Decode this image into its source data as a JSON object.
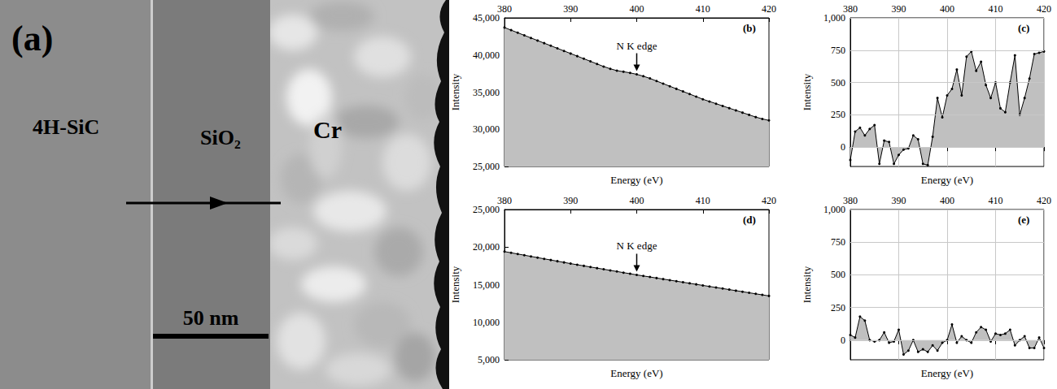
{
  "image": {
    "label": "(a)",
    "layers": [
      "4H-SiC",
      "SiO₂",
      "Cr"
    ],
    "scale_bar": "50 nm"
  },
  "chart_data": [
    {
      "type": "area",
      "label": "(b)",
      "xlabel": "Energy (eV)",
      "ylabel": "Intensity",
      "color": "#c0c0c0",
      "marker": "circle",
      "grid": false,
      "x": [
        380,
        381,
        382,
        383,
        384,
        385,
        386,
        387,
        388,
        389,
        390,
        391,
        392,
        393,
        394,
        395,
        396,
        397,
        398,
        399,
        400,
        401,
        402,
        403,
        404,
        405,
        406,
        407,
        408,
        409,
        410,
        411,
        412,
        413,
        414,
        415,
        416,
        417,
        418,
        419,
        420
      ],
      "values": [
        43700,
        43350,
        43000,
        42650,
        42300,
        41950,
        41600,
        41250,
        40900,
        40550,
        40200,
        39850,
        39500,
        39150,
        38800,
        38450,
        38150,
        37900,
        37750,
        37600,
        37400,
        37150,
        36850,
        36500,
        36150,
        35800,
        35450,
        35100,
        34750,
        34400,
        34050,
        33750,
        33450,
        33150,
        32850,
        32550,
        32250,
        31950,
        31650,
        31400,
        31200
      ],
      "xlim": [
        380,
        420
      ],
      "xticks": [
        380,
        390,
        400,
        410,
        420
      ],
      "ylim": [
        25000,
        45000
      ],
      "yticks": [
        {
          "value": 25000,
          "label": "25,000"
        },
        {
          "value": 30000,
          "label": "30,000"
        },
        {
          "value": 35000,
          "label": "35,000"
        },
        {
          "value": 40000,
          "label": "40,000"
        },
        {
          "value": 45000,
          "label": "45,000"
        }
      ],
      "annotation": {
        "text": "N K edge",
        "x": 400
      }
    },
    {
      "type": "area",
      "label": "(c)",
      "xlabel": "Energy (eV)",
      "ylabel": "Intensity",
      "color": "#c0c0c0",
      "marker": "circle",
      "grid": true,
      "x": [
        380,
        381,
        382,
        383,
        384,
        385,
        386,
        387,
        388,
        389,
        390,
        391,
        392,
        393,
        394,
        395,
        396,
        397,
        398,
        399,
        400,
        401,
        402,
        403,
        404,
        405,
        406,
        407,
        408,
        409,
        410,
        411,
        412,
        413,
        414,
        415,
        416,
        417,
        418,
        419,
        420
      ],
      "values": [
        -100,
        120,
        150,
        90,
        140,
        170,
        -130,
        50,
        40,
        -130,
        -60,
        -20,
        -10,
        90,
        60,
        -130,
        -140,
        80,
        380,
        230,
        400,
        450,
        600,
        400,
        700,
        740,
        590,
        660,
        480,
        380,
        500,
        300,
        270,
        500,
        710,
        250,
        380,
        530,
        720,
        730,
        740
      ],
      "xlim": [
        380,
        420
      ],
      "xticks": [
        380,
        390,
        400,
        410,
        420
      ],
      "ylim": [
        -150,
        1000
      ],
      "yticks": [
        0,
        250,
        500,
        750,
        {
          "value": 1000,
          "label": "1,000"
        }
      ]
    },
    {
      "type": "area",
      "label": "(d)",
      "xlabel": "Energy (eV)",
      "ylabel": "Intensity",
      "color": "#c0c0c0",
      "marker": "circle",
      "grid": false,
      "x": [
        380,
        381,
        382,
        383,
        384,
        385,
        386,
        387,
        388,
        389,
        390,
        391,
        392,
        393,
        394,
        395,
        396,
        397,
        398,
        399,
        400,
        401,
        402,
        403,
        404,
        405,
        406,
        407,
        408,
        409,
        410,
        411,
        412,
        413,
        414,
        415,
        416,
        417,
        418,
        419,
        420
      ],
      "values": [
        19400,
        19240,
        19080,
        18920,
        18760,
        18600,
        18440,
        18280,
        18120,
        17960,
        17800,
        17650,
        17500,
        17350,
        17200,
        17050,
        16900,
        16750,
        16600,
        16450,
        16300,
        16160,
        16020,
        15880,
        15740,
        15600,
        15460,
        15320,
        15180,
        15040,
        14900,
        14760,
        14620,
        14480,
        14340,
        14200,
        14060,
        13920,
        13780,
        13640,
        13500
      ],
      "xlim": [
        380,
        420
      ],
      "xticks": [
        380,
        390,
        400,
        410,
        420
      ],
      "ylim": [
        5000,
        25000
      ],
      "yticks": [
        {
          "value": 5000,
          "label": "5,000"
        },
        {
          "value": 10000,
          "label": "10,000"
        },
        {
          "value": 15000,
          "label": "15,000"
        },
        {
          "value": 20000,
          "label": "20,000"
        },
        {
          "value": 25000,
          "label": "25,000"
        }
      ],
      "annotation": {
        "text": "N K edge",
        "x": 400
      }
    },
    {
      "type": "area",
      "label": "(e)",
      "xlabel": "Energy (eV)",
      "ylabel": "Intensity",
      "color": "#c0c0c0",
      "marker": "circle",
      "grid": true,
      "x": [
        380,
        381,
        382,
        383,
        384,
        385,
        386,
        387,
        388,
        389,
        390,
        391,
        392,
        393,
        394,
        395,
        396,
        397,
        398,
        399,
        400,
        401,
        402,
        403,
        404,
        405,
        406,
        407,
        408,
        409,
        410,
        411,
        412,
        413,
        414,
        415,
        416,
        417,
        418,
        419,
        420
      ],
      "values": [
        40,
        20,
        180,
        150,
        0,
        -10,
        0,
        60,
        -20,
        -10,
        80,
        -110,
        -80,
        0,
        -90,
        -70,
        -90,
        -40,
        -80,
        -20,
        0,
        120,
        -20,
        30,
        0,
        -20,
        60,
        100,
        80,
        -10,
        50,
        40,
        50,
        80,
        -40,
        0,
        30,
        -60,
        -60,
        20,
        -60
      ],
      "xlim": [
        380,
        420
      ],
      "xticks": [
        380,
        390,
        400,
        410,
        420
      ],
      "ylim": [
        -150,
        1000
      ],
      "yticks": [
        0,
        250,
        500,
        750,
        {
          "value": 1000,
          "label": "1,000"
        }
      ]
    }
  ]
}
